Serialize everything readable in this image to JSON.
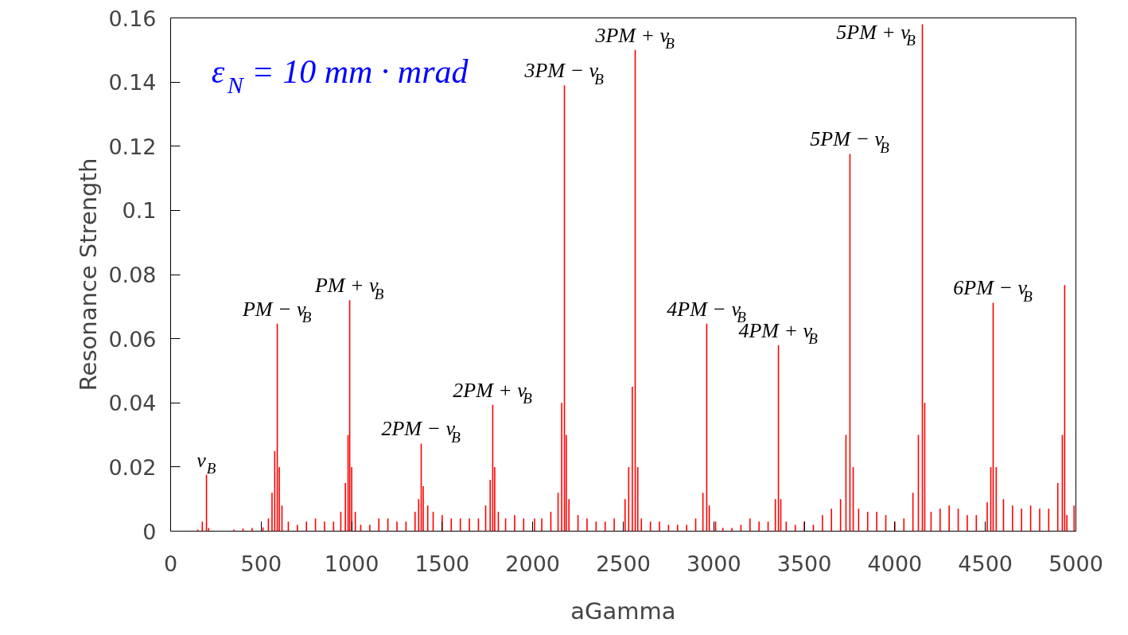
{
  "chart_data": {
    "type": "bar",
    "xlabel": "aGamma",
    "ylabel": "Resonance Strength",
    "x": [
      0,
      50,
      100,
      150,
      175,
      198,
      210,
      250,
      300,
      350,
      400,
      450,
      510,
      540,
      560,
      575,
      589,
      600,
      615,
      650,
      700,
      750,
      800,
      850,
      900,
      940,
      965,
      980,
      989,
      1000,
      1020,
      1050,
      1100,
      1150,
      1200,
      1250,
      1300,
      1350,
      1370,
      1384,
      1395,
      1420,
      1450,
      1500,
      1550,
      1600,
      1650,
      1700,
      1740,
      1765,
      1779,
      1790,
      1810,
      1850,
      1900,
      1950,
      2010,
      2050,
      2100,
      2140,
      2160,
      2175,
      2185,
      2200,
      2250,
      2300,
      2350,
      2400,
      2450,
      2510,
      2530,
      2550,
      2566,
      2580,
      2600,
      2650,
      2700,
      2750,
      2800,
      2850,
      2900,
      2940,
      2961,
      2975,
      3010,
      3050,
      3100,
      3150,
      3200,
      3250,
      3300,
      3340,
      3357,
      3370,
      3400,
      3450,
      3500,
      3550,
      3600,
      3650,
      3700,
      3730,
      3752,
      3770,
      3800,
      3850,
      3900,
      3950,
      4000,
      4050,
      4100,
      4130,
      4152,
      4165,
      4200,
      4250,
      4300,
      4350,
      4400,
      4450,
      4510,
      4530,
      4543,
      4560,
      4600,
      4650,
      4700,
      4750,
      4800,
      4850,
      4900,
      4925,
      4938,
      4950,
      4990
    ],
    "series": [
      {
        "color": "#ff0000",
        "values": [
          0,
          0,
          0,
          0.0005,
          0.003,
          0.0176,
          0.001,
          0,
          0,
          0.0005,
          0.0008,
          0.001,
          0.0012,
          0.004,
          0.012,
          0.025,
          0.0647,
          0.02,
          0.008,
          0.003,
          0.002,
          0.003,
          0.004,
          0.003,
          0.003,
          0.006,
          0.015,
          0.03,
          0.072,
          0.02,
          0.006,
          0.002,
          0.002,
          0.004,
          0.004,
          0.003,
          0.003,
          0.006,
          0.01,
          0.0273,
          0.014,
          0.008,
          0.006,
          0.005,
          0.004,
          0.004,
          0.004,
          0.004,
          0.008,
          0.016,
          0.0394,
          0.02,
          0.006,
          0.004,
          0.005,
          0.004,
          0.004,
          0.004,
          0.006,
          0.012,
          0.04,
          0.139,
          0.03,
          0.01,
          0.005,
          0.004,
          0.003,
          0.003,
          0.004,
          0.01,
          0.02,
          0.045,
          0.15,
          0.02,
          0.004,
          0.003,
          0.003,
          0.002,
          0.002,
          0.002,
          0.004,
          0.012,
          0.0647,
          0.008,
          0.003,
          0.001,
          0.001,
          0.002,
          0.004,
          0.003,
          0.003,
          0.01,
          0.058,
          0.01,
          0.003,
          0.002,
          0.003,
          0.002,
          0.005,
          0.007,
          0.01,
          0.03,
          0.1176,
          0.02,
          0.007,
          0.006,
          0.006,
          0.005,
          0.003,
          0.004,
          0.012,
          0.03,
          0.158,
          0.04,
          0.006,
          0.007,
          0.008,
          0.007,
          0.005,
          0.005,
          0.009,
          0.02,
          0.0712,
          0.02,
          0.01,
          0.008,
          0.007,
          0.008,
          0.007,
          0.007,
          0.015,
          0.03,
          0.0767,
          0.005,
          0.008
        ]
      }
    ],
    "xlim": [
      0,
      5000
    ],
    "xticks": [
      0,
      500,
      1000,
      1500,
      2000,
      2500,
      3000,
      3500,
      4000,
      4500,
      5000
    ],
    "ylim": [
      0,
      0.16
    ],
    "yticks": [
      {
        "value": 0,
        "label": "0"
      },
      0.02,
      0.04,
      0.06,
      0.08,
      {
        "value": 0.1,
        "label": "0.1"
      },
      0.12,
      0.14,
      0.16
    ],
    "grid": false,
    "annotations": [
      {
        "text": "ε$_{N}$ = 10 mm · mrad"
      },
      {
        "text": "ν$_{B}$",
        "x": 198,
        "y": 0.0176
      },
      {
        "text": "PM − ν$_{B}$",
        "x": 589,
        "y": 0.0647
      },
      {
        "text": "PM + ν$_{B}$",
        "x": 989,
        "y": 0.072
      },
      {
        "text": "2PM − ν$_{B}$",
        "x": 1384,
        "y": 0.0273
      },
      {
        "text": "2PM + ν$_{B}$",
        "x": 1779,
        "y": 0.0394
      },
      {
        "text": "3PM − ν$_{B}$",
        "x": 2175,
        "y": 0.139
      },
      {
        "text": "3PM + ν$_{B}$",
        "x": 2566,
        "y": 0.15
      },
      {
        "text": "4PM − ν$_{B}$",
        "x": 2961,
        "y": 0.0647
      },
      {
        "text": "4PM + ν$_{B}$",
        "x": 3357,
        "y": 0.058
      },
      {
        "text": "5PM − ν$_{B}$",
        "x": 3752,
        "y": 0.1176
      },
      {
        "text": "5PM + ν$_{B}$",
        "x": 4152,
        "y": 0.158
      },
      {
        "text": "6PM − ν$_{B}$",
        "x": 4543,
        "y": 0.0712
      }
    ]
  }
}
